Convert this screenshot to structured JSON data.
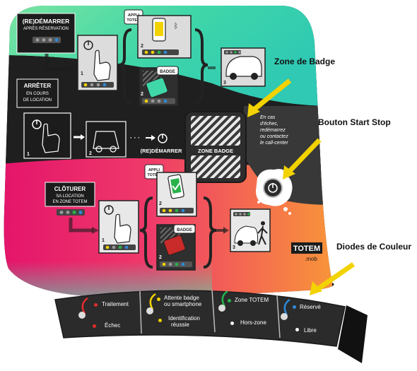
{
  "callouts": {
    "zone_badge": "Zone de Badge",
    "start_stop": "Bouton Start Stop",
    "diodes": "Diodes de Couleur"
  },
  "panel": {
    "restart_title_1": "(RE)DÉMARRER",
    "restart_title_2": "APRÈS RÉSERVATION",
    "stop_title_1": "ARRÊTER",
    "stop_title_2": "EN COURS",
    "stop_title_3": "DE LOCATION",
    "restart_inline": "(RE)DÉMARRER",
    "close_title_1": "CLÔTURER",
    "close_title_2": "SA LOCATION",
    "close_title_3": "EN ZONE TOTEM",
    "appli_totem_1": "APPLI",
    "appli_totem_2": "TOTEM",
    "badge": "BADGE",
    "zone_badge": "ZONE BADGE",
    "fallback_1": "En cas",
    "fallback_2": "d'échec,",
    "fallback_3": "redémarrez",
    "fallback_4": "ou contactez",
    "fallback_5": "le call-center",
    "step_1": "1",
    "step_2": "2",
    "step_3": "3",
    "ellipsis": "· · ·",
    "logo_main": "TOTEM",
    "logo_sub": ".mob"
  },
  "legend": {
    "seg1_a": "Traitement",
    "seg1_b": "Échec",
    "seg2_a1": "Attente badge",
    "seg2_a2": "ou smartphone",
    "seg2_b1": "Identification",
    "seg2_b2": "réussie",
    "seg3_a": "Zone TOTEM",
    "seg3_b": "Hors-zone",
    "seg4_a": "Réservé",
    "seg4_b": "Libre"
  },
  "colors": {
    "teal": "#3fd6a8",
    "pink": "#ec2a74",
    "orange": "#f58a3c",
    "dark": "#232323",
    "arrow_yellow": "#f2d200",
    "led_red": "#e32b2b",
    "led_yellow": "#f2d200",
    "led_green": "#28b34a",
    "led_blue": "#2d8ad8",
    "led_white": "#ffffff"
  }
}
